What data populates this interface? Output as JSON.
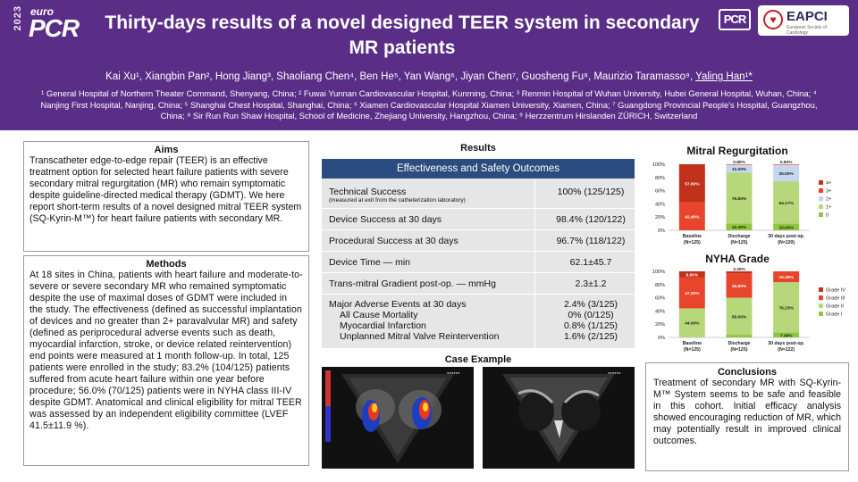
{
  "header": {
    "logo_year": "2023",
    "logo_euro": "euro",
    "logo_pcr": "PCR",
    "title": "Thirty-days results of a novel designed TEER system in secondary MR patients",
    "logo_pcr_small": "PCR",
    "logo_eapci": "EAPCI",
    "logo_eapci_sub": "European Society of Cardiology",
    "authors": "Kai Xu¹, Xiangbin Pan², Hong Jiang³, Shaoliang Chen⁴, Ben He⁵, Yan Wang⁶, Jiyan Chen⁷, Guosheng Fu⁸, Maurizio Taramasso⁹, ",
    "last_author": "Yaling Han¹*",
    "affiliations": "¹ General Hospital of Northern Theater Command, Shenyang, China; ² Fuwai Yunnan Cardiovascular Hospital, Kunming, China; ³ Renmin Hospital of Wuhan University, Hubei General Hospital, Wuhan, China; ⁴ Nanjing First Hospital, Nanjing, China; ⁵ Shanghai Chest Hospital, Shanghai, China; ⁶ Xiamen Cardiovascular Hospital Xiamen University, Xiamen, China; ⁷ Guangdong Provincial People's Hospital,  Guangzhou, China; ⁸ Sir Run Run Shaw Hospital, School of Medicine, Zhejiang University, Hangzhou, China; ⁹ Herzzentrum Hirslanden ZÜRICH, Switzerland"
  },
  "aims": {
    "title": "Aims",
    "text": "Transcatheter edge-to-edge repair (TEER) is an effective treatment option for selected heart failure patients with severe secondary mitral regurgitation (MR) who remain symptomatic despite guideline-directed medical therapy (GDMT). We here report short-term results of a novel designed mitral TEER system (SQ-Kyrin-M™) for heart failure patients with secondary MR."
  },
  "methods": {
    "title": "Methods",
    "text": "At 18 sites in China, patients with heart failure and moderate-to-severe or severe secondary MR who remained symptomatic despite the use of maximal doses of GDMT were included in the study. The effectiveness (defined as successful implantation of devices and no greater than 2+ paravalvular MR) and safety (defined as periprocedural adverse events such as death, myocardial infarction, stroke, or device related reintervention) end points were measured at 1 month follow-up. In total, 125 patients were enrolled in the study; 83.2% (104/125) patients suffered from acute heart failure within one year before procedure; 56.0% (70/125) patients were in NYHA class III-IV despite GDMT. Anatomical and clinical eligibility for mitral TEER was assessed by an independent eligibility committee (LVEF 41.5±11.9 %)."
  },
  "results": {
    "title": "Results",
    "table_header": "Effectiveness and Safety Outcomes",
    "rows": [
      {
        "label": "Technical Success",
        "sub": "(measured at exit from the catheterization laboratory)",
        "value": "100% (125/125)"
      },
      {
        "label": "Device Success at 30 days",
        "value": "98.4% (120/122)"
      },
      {
        "label": "Procedural Success at 30 days",
        "value": "96.7% (118/122)"
      },
      {
        "label": "Device Time — min",
        "value": "62.1±45.7"
      },
      {
        "label": "Trans-mitral Gradient post-op. — mmHg",
        "value": "2.3±1.2"
      },
      {
        "label": "Major Adverse Events at 30 days",
        "value": "2.4% (3/125)"
      }
    ],
    "mae_items": [
      {
        "label": "All Cause Mortality",
        "value": "0%   (0/125)"
      },
      {
        "label": "Myocardial Infarction",
        "value": "0.8%  (1/125)"
      },
      {
        "label": "Unplanned Mitral Valve Reintervention",
        "value": "1.6%  (2/125)"
      }
    ]
  },
  "case_example": {
    "title": "Case Example"
  },
  "conclusions": {
    "title": "Conclusions",
    "text": "Treatment of secondary MR with SQ-Kyrin-M™ System seems to be safe and feasible in this cohort. Initial efficacy analysis showed encouraging reduction of MR, which may potentially result in improved clinical outcomes."
  },
  "chart_data": [
    {
      "type": "bar",
      "stacked": true,
      "title": "Mitral Regurgitation",
      "categories": [
        "Baseline\n(N=125)",
        "Discharge\n(N=125)",
        "30 days post-op.\n(N=120)"
      ],
      "ylim": [
        0,
        100
      ],
      "yticks": [
        "0%",
        "20%",
        "40%",
        "60%",
        "80%",
        "100%"
      ],
      "legend_position": "right",
      "series": [
        {
          "name": "0",
          "color": "#8dc63f",
          "values": [
            0,
            10.4,
            10.0
          ],
          "labels": [
            "",
            "10.40%",
            "10.00%"
          ]
        },
        {
          "name": "1+",
          "color": "#b6d77a",
          "values": [
            0,
            76.8,
            64.17
          ],
          "labels": [
            "",
            "76.80%",
            "64.17%"
          ]
        },
        {
          "name": "2+",
          "color": "#c5d7ee",
          "values": [
            0,
            12.0,
            25.0
          ],
          "labels": [
            "",
            "12.00%",
            "25.00%"
          ]
        },
        {
          "name": "3+",
          "color": "#e8452c",
          "values": [
            42.4,
            0.8,
            0.83
          ],
          "labels": [
            "42.40%",
            "0.80%",
            "0.83%"
          ]
        },
        {
          "name": "4+",
          "color": "#c0301a",
          "values": [
            57.6,
            0,
            0
          ],
          "labels": [
            "57.60%",
            "",
            ""
          ]
        }
      ]
    },
    {
      "type": "bar",
      "stacked": true,
      "title": "NYHA Grade",
      "categories": [
        "Baseline\n(N=125)",
        "Discharge\n(N=125)",
        "30 days post-op.\n(N=122)"
      ],
      "ylim": [
        0,
        100
      ],
      "yticks": [
        "0%",
        "20%",
        "40%",
        "60%",
        "80%",
        "100%"
      ],
      "legend_position": "right",
      "series": [
        {
          "name": "Grade I",
          "color": "#8dc63f",
          "values": [
            0,
            4.0,
            7.38
          ],
          "labels": [
            "",
            "4.00%",
            "7.38%"
          ]
        },
        {
          "name": "Grade II",
          "color": "#b6d77a",
          "values": [
            44.0,
            56.0,
            76.23
          ],
          "labels": [
            "44.00%",
            "56.00%",
            "76.23%"
          ]
        },
        {
          "name": "Grade III",
          "color": "#e8452c",
          "values": [
            47.2,
            36.8,
            16.39
          ],
          "labels": [
            "47.20%",
            "36.80%",
            "16.39%"
          ]
        },
        {
          "name": "Grade IV",
          "color": "#c0301a",
          "values": [
            8.8,
            3.2,
            0
          ],
          "labels": [
            "8.80%",
            "3.20%",
            ""
          ]
        }
      ]
    }
  ]
}
